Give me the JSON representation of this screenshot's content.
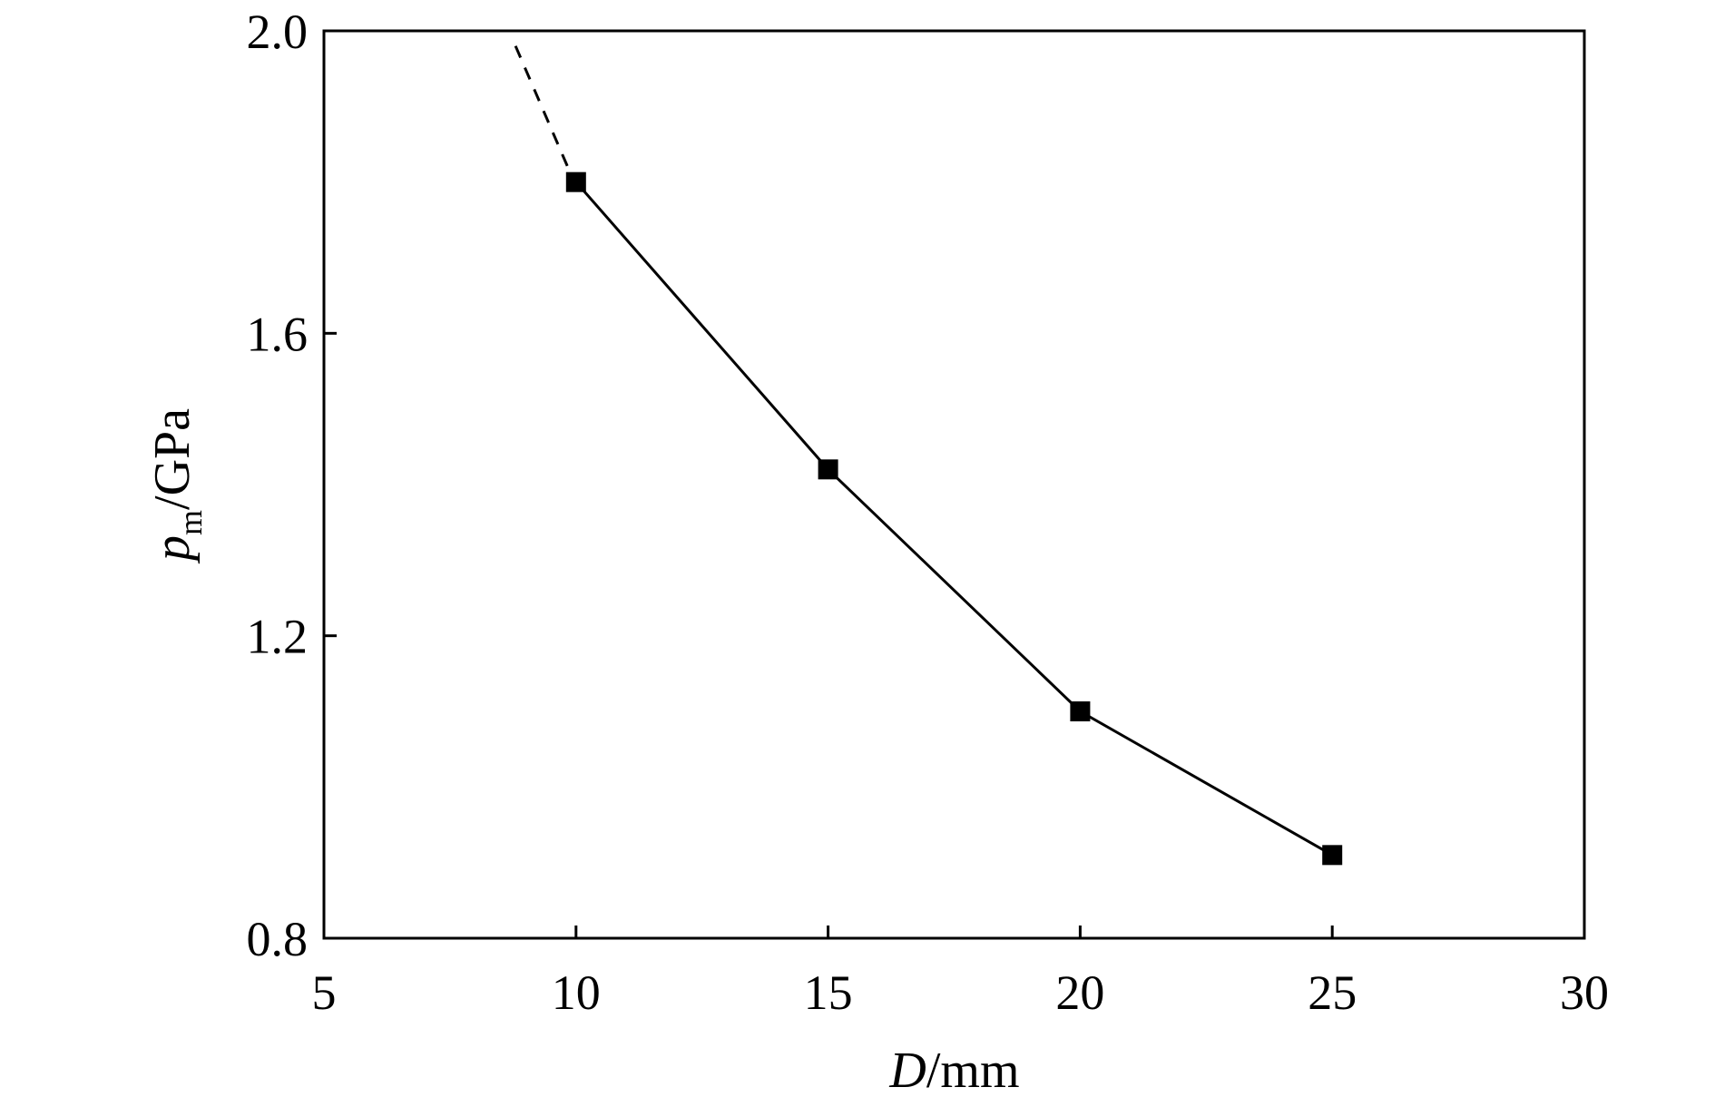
{
  "chart_data": {
    "type": "line",
    "xlabel": {
      "var": "D",
      "unit": "/mm"
    },
    "ylabel": {
      "var": "p",
      "sub": "m",
      "unit": "/GPa"
    },
    "xlim": [
      5,
      30
    ],
    "ylim": [
      0.8,
      2.0
    ],
    "xticks": [
      "5",
      "10",
      "15",
      "20",
      "25",
      "30"
    ],
    "yticks": [
      "0.8",
      "1.2",
      "1.6",
      "2.0"
    ],
    "grid": false,
    "series": [
      {
        "marker": "square",
        "line": "solid",
        "color": "#000000",
        "x": [
          10,
          15,
          20,
          25
        ],
        "y": [
          1.8,
          1.42,
          1.1,
          0.91
        ]
      },
      {
        "marker": "none",
        "line": "dashed",
        "color": "#000000",
        "x": [
          8.8,
          9.9
        ],
        "y": [
          1.98,
          1.81
        ]
      }
    ]
  }
}
